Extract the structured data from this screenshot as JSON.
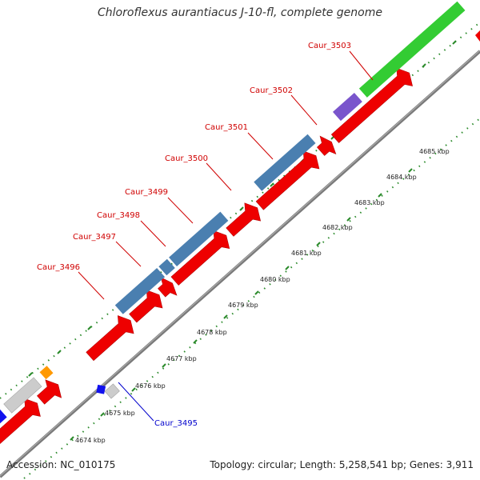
{
  "title": "Chloroflexus aurantiacus J-10-fl, complete genome",
  "accession": "Accession: NC_010175",
  "topology": "Topology: circular; Length: 5,258,541 bp; Genes: 3,911",
  "colors": {
    "cds": "#ee0000",
    "steel": "#4a7fb0",
    "green": "#33cc33",
    "purple": "#7a55cc",
    "grey": "#c8c8c8",
    "orange": "#ff9900",
    "blue": "#0000ee",
    "backbone": "#888888",
    "ruler": "#2a8a2a"
  },
  "gene_labels": [
    {
      "name": "Caur_3496",
      "text": "Caur_3496"
    },
    {
      "name": "Caur_3497",
      "text": "Caur_3497"
    },
    {
      "name": "Caur_3498",
      "text": "Caur_3498"
    },
    {
      "name": "Caur_3499",
      "text": "Caur_3499"
    },
    {
      "name": "Caur_3500",
      "text": "Caur_3500"
    },
    {
      "name": "Caur_3501",
      "text": "Caur_3501"
    },
    {
      "name": "Caur_3502",
      "text": "Caur_3502"
    },
    {
      "name": "Caur_3503",
      "text": "Caur_3503"
    },
    {
      "name": "Caur_3495",
      "text": "Caur_3495"
    }
  ],
  "ruler_labels": [
    "4674 kbp",
    "4675 kbp",
    "4676 kbp",
    "4677 kbp",
    "4678 kbp",
    "4679 kbp",
    "4680 kbp",
    "4681 kbp",
    "4682 kbp",
    "4683 kbp",
    "4684 kbp",
    "4685 kbp"
  ]
}
